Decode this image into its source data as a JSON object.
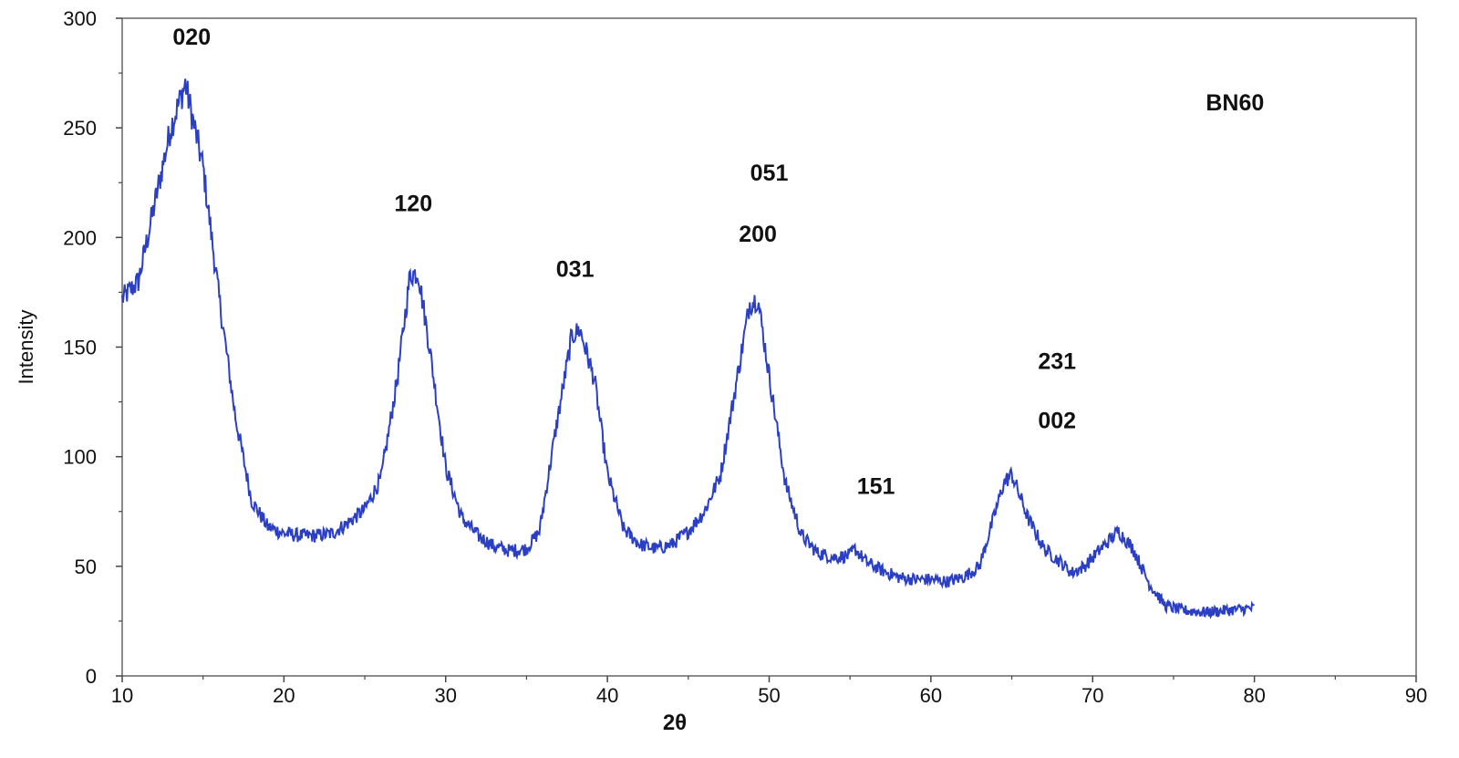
{
  "chart_data": {
    "type": "line",
    "title": "",
    "xlabel": "2θ",
    "ylabel": "Intensity",
    "xlim": [
      10,
      90
    ],
    "ylim": [
      0,
      300
    ],
    "xticks": [
      10,
      20,
      30,
      40,
      50,
      60,
      70,
      80,
      90
    ],
    "yticks": [
      0,
      50,
      100,
      150,
      200,
      250,
      300
    ],
    "grid": false,
    "line_color": "#2b3fc4",
    "series": [
      {
        "x": [
          10,
          11,
          12,
          13,
          13.9,
          15,
          16,
          17,
          18,
          19,
          20,
          21,
          22,
          23,
          24,
          25,
          26,
          27,
          27.8,
          28.3,
          29,
          30,
          31,
          32,
          33,
          34,
          35,
          35.8,
          36.8,
          37.8,
          38.3,
          39.2,
          40,
          41,
          42,
          43,
          44,
          45,
          46,
          47,
          48,
          48.8,
          49.3,
          50,
          51,
          52,
          53,
          54,
          55,
          55.3,
          56,
          57,
          58,
          59,
          60,
          61,
          62,
          63,
          63.8,
          64.5,
          65,
          66,
          67,
          68,
          68.7,
          69.5,
          70.5,
          71.6,
          72.5,
          73.5,
          74.5,
          75.5,
          77,
          78.5,
          80
        ],
        "y": [
          172,
          180,
          215,
          250,
          270,
          232,
          172,
          118,
          80,
          68,
          65,
          64,
          64,
          65,
          70,
          76,
          90,
          135,
          183,
          184,
          150,
          95,
          72,
          64,
          59,
          57,
          58,
          66,
          112,
          155,
          158,
          135,
          92,
          67,
          60,
          58,
          60,
          66,
          75,
          92,
          135,
          170,
          172,
          137,
          88,
          64,
          56,
          54,
          55,
          58,
          52,
          48,
          45,
          44,
          44,
          43,
          45,
          50,
          70,
          88,
          92,
          72,
          58,
          52,
          47,
          50,
          58,
          66,
          58,
          42,
          32,
          30,
          29,
          30,
          31
        ]
      }
    ],
    "annotations": [
      {
        "text": "020",
        "x": 14.3,
        "y": 288
      },
      {
        "text": "120",
        "x": 28.0,
        "y": 212
      },
      {
        "text": "031",
        "x": 38.0,
        "y": 182
      },
      {
        "text": "051",
        "x": 50.0,
        "y": 226
      },
      {
        "text": "200",
        "x": 49.3,
        "y": 198
      },
      {
        "text": "151",
        "x": 56.6,
        "y": 83
      },
      {
        "text": "231",
        "x": 67.8,
        "y": 140
      },
      {
        "text": "002",
        "x": 67.8,
        "y": 113
      },
      {
        "text": "BN60",
        "x": 78.8,
        "y": 258
      }
    ]
  }
}
